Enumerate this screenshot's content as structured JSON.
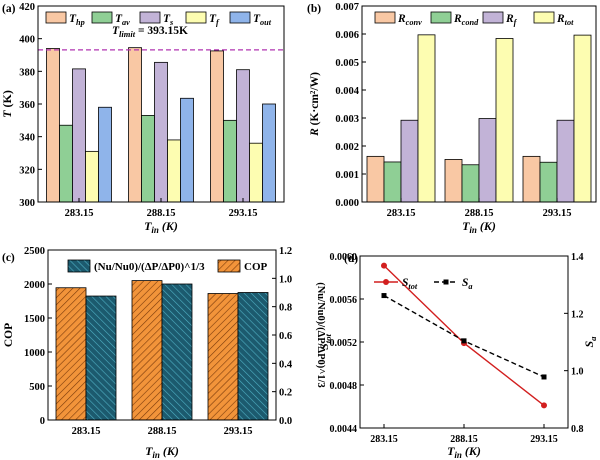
{
  "chart_data": [
    {
      "panel": "(a)",
      "type": "bar",
      "categories": [
        "283.15",
        "288.15",
        "293.15"
      ],
      "xlabel": "T_in (K)",
      "ylabel": "T (K)",
      "ylim": [
        300,
        420
      ],
      "yticks": [
        "300",
        "320",
        "340",
        "360",
        "380",
        "400",
        "420"
      ],
      "series": [
        {
          "name": "T_hp",
          "color": "#f9c8a4",
          "values": [
            394,
            394.5,
            392.5
          ]
        },
        {
          "name": "T_av",
          "color": "#8fcf95",
          "values": [
            347,
            353,
            350
          ]
        },
        {
          "name": "T_s",
          "color": "#c2b3d7",
          "values": [
            381.5,
            385.5,
            381
          ]
        },
        {
          "name": "T_f",
          "color": "#fdfdb1",
          "values": [
            331,
            338,
            336
          ]
        },
        {
          "name": "T_out",
          "color": "#8fb4ea",
          "values": [
            358,
            363.5,
            360
          ]
        }
      ],
      "reference_line": {
        "value": 393.15,
        "label": "T_limit = 393.15K",
        "color": "#b133b1"
      },
      "legend_placement": "top"
    },
    {
      "panel": "(b)",
      "type": "bar",
      "categories": [
        "283.15",
        "288.15",
        "293.15"
      ],
      "xlabel": "T_in (K)",
      "ylabel": "R (K·cm²/W)",
      "ylim": [
        0,
        0.007
      ],
      "yticks": [
        "0.000",
        "0.001",
        "0.002",
        "0.003",
        "0.004",
        "0.005",
        "0.006",
        "0.007"
      ],
      "series": [
        {
          "name": "R_conv",
          "color": "#f9c8a4",
          "values": [
            0.00163,
            0.00152,
            0.00163
          ]
        },
        {
          "name": "R_cond",
          "color": "#8fcf95",
          "values": [
            0.00143,
            0.00133,
            0.00142
          ]
        },
        {
          "name": "R_f",
          "color": "#c2b3d7",
          "values": [
            0.00292,
            0.00298,
            0.00292
          ]
        },
        {
          "name": "R_tot",
          "color": "#fdfdb1",
          "values": [
            0.00597,
            0.00584,
            0.00596
          ]
        }
      ],
      "legend_placement": "top"
    },
    {
      "panel": "(c)",
      "type": "bar",
      "categories": [
        "283.15",
        "288.15",
        "293.15"
      ],
      "xlabel": "T_in (K)",
      "ylabel_left": "COP",
      "ylabel_right": "(Nu/Nu0)/(ΔP/ΔP0)^1/3",
      "ylim_left": [
        0,
        2500
      ],
      "ylim_right": [
        0,
        1.2
      ],
      "yticks_left": [
        "0",
        "500",
        "1000",
        "1500",
        "2000",
        "2500"
      ],
      "yticks_right": [
        "0.0",
        "0.2",
        "0.4",
        "0.6",
        "0.8",
        "1.0",
        "1.2"
      ],
      "series": [
        {
          "name": "COP",
          "axis": "left",
          "color": "#f2943a",
          "values": [
            1945,
            2050,
            1860
          ]
        },
        {
          "name": "(Nu/Nu0)/(ΔP/ΔP0)^1/3",
          "axis": "right",
          "color": "#1c5a6e",
          "values": [
            0.875,
            0.96,
            0.9
          ]
        }
      ],
      "legend_placement": "top"
    },
    {
      "panel": "(d)",
      "type": "line",
      "x": [
        "283.15",
        "288.15",
        "293.15"
      ],
      "xlabel": "T_in (K)",
      "ylabel_left": "S_tot",
      "ylabel_right": "S_a",
      "ylim_left": [
        0.0044,
        0.006
      ],
      "ylim_right": [
        0.8,
        1.4
      ],
      "yticks_left": [
        "0.0044",
        "0.0048",
        "0.0052",
        "0.0056",
        "0.0060"
      ],
      "yticks_right": [
        "0.8",
        "1.0",
        "1.2",
        "1.4"
      ],
      "series": [
        {
          "name": "S_tot",
          "axis": "left",
          "color": "#d21f1f",
          "style": "solid",
          "marker": "circle",
          "values": [
            0.00591,
            0.00519,
            0.00461
          ]
        },
        {
          "name": "S_a",
          "axis": "right",
          "color": "#000000",
          "style": "dashed",
          "marker": "square",
          "values": [
            1.262,
            1.104,
            0.978
          ]
        }
      ],
      "legend_placement": "top"
    }
  ]
}
